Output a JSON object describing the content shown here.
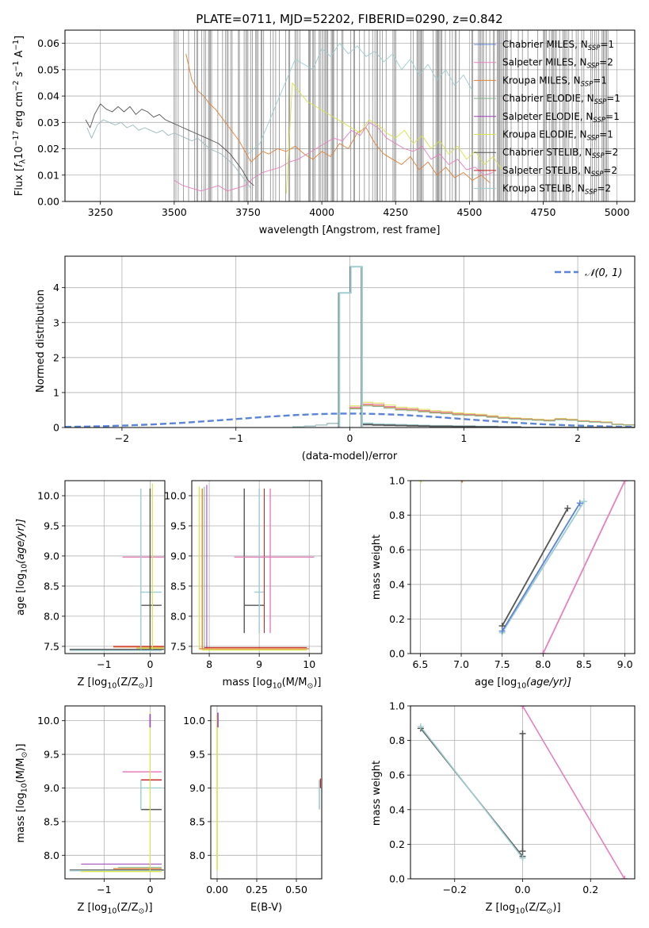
{
  "figure": {
    "title": "PLATE=0711, MJD=52202, FIBERID=0290, z=0.842"
  },
  "colors": {
    "chabrier_miles": "#5b84d6",
    "salpeter_miles": "#e77fbf",
    "kroupa_miles": "#e0803a",
    "chabrier_elodie": "#86b48b",
    "salpeter_elodie": "#9b3fb5",
    "kroupa_elodie": "#d9e24a",
    "chabrier_stelib": "#555555",
    "salpeter_stelib": "#c21b1b",
    "kroupa_stelib": "#9ecdd0",
    "data": "#9ab8bd",
    "mask": "#808080",
    "grid": "#b0b0b0",
    "normal": "#5b84d6"
  },
  "chart_data": [
    {
      "id": "spectrum",
      "type": "line",
      "xlabel": "wavelength [Angstrom, rest frame]",
      "ylabel": "Flux [f_λ 10^-17 erg cm^-2 s^-1 A^-1]",
      "ylabel_parts": {
        "a": "Flux [",
        "b": "f",
        "c": "λ",
        "d": "10",
        "e": "−17",
        "f": " erg cm",
        "g": "−2",
        "h": " s",
        "i": "−1",
        "j": " A",
        "k": "−1",
        "l": "]"
      },
      "xlim": [
        3130,
        5060
      ],
      "ylim": [
        0.0,
        0.065
      ],
      "xticks": [
        "3250",
        "3500",
        "3750",
        "4000",
        "4250",
        "4500",
        "4750",
        "5000"
      ],
      "xtick_values": [
        3250,
        3500,
        3750,
        4000,
        4250,
        4500,
        4750,
        5000
      ],
      "yticks": [
        "0.00",
        "0.01",
        "0.02",
        "0.03",
        "0.04",
        "0.05",
        "0.06"
      ],
      "ytick_values": [
        0,
        0.01,
        0.02,
        0.03,
        0.04,
        0.05,
        0.06
      ],
      "mask_range": [
        3500,
        4985
      ],
      "legend_position": "upper-right",
      "legend": [
        {
          "key": "chabrier_miles",
          "main": "Chabrier MILES, N",
          "sub": "SSP",
          "tail": "=1"
        },
        {
          "key": "salpeter_miles",
          "main": "Salpeter MILES, N",
          "sub": "SSP",
          "tail": "=2"
        },
        {
          "key": "kroupa_miles",
          "main": "Kroupa MILES, N",
          "sub": "SSP",
          "tail": "=1"
        },
        {
          "key": "chabrier_elodie",
          "main": "Chabrier ELODIE, N",
          "sub": "SSP",
          "tail": "=1"
        },
        {
          "key": "salpeter_elodie",
          "main": "Salpeter ELODIE, N",
          "sub": "SSP",
          "tail": "=1"
        },
        {
          "key": "kroupa_elodie",
          "main": "Kroupa ELODIE, N",
          "sub": "SSP",
          "tail": "=1"
        },
        {
          "key": "chabrier_stelib",
          "main": "Chabrier STELIB, N",
          "sub": "SSP",
          "tail": "=2"
        },
        {
          "key": "salpeter_stelib",
          "main": "Salpeter STELIB, N",
          "sub": "SSP",
          "tail": "=2"
        },
        {
          "key": "kroupa_stelib",
          "main": "Kroupa STELIB, N",
          "sub": "SSP",
          "tail": "=2"
        }
      ],
      "series": [
        {
          "key": "data",
          "x": [
            3205,
            3220,
            3240,
            3260,
            3280,
            3300,
            3320,
            3340,
            3360,
            3380,
            3400,
            3420,
            3440,
            3460,
            3480,
            3500,
            3520,
            3540,
            3560,
            3580,
            3600,
            3620,
            3640,
            3660,
            3680,
            3700,
            3720,
            3740,
            3760
          ],
          "y": [
            0.028,
            0.024,
            0.029,
            0.031,
            0.03,
            0.029,
            0.03,
            0.028,
            0.029,
            0.027,
            0.028,
            0.027,
            0.026,
            0.027,
            0.025,
            0.026,
            0.025,
            0.024,
            0.023,
            0.024,
            0.022,
            0.02,
            0.019,
            0.018,
            0.016,
            0.014,
            0.011,
            0.008,
            0.005
          ]
        },
        {
          "key": "chabrier_stelib",
          "x": [
            3200,
            3215,
            3230,
            3250,
            3270,
            3290,
            3310,
            3330,
            3350,
            3370,
            3390,
            3410,
            3430,
            3450,
            3470,
            3490,
            3510,
            3530,
            3550,
            3570,
            3590,
            3610,
            3630,
            3650,
            3670,
            3690,
            3710,
            3730,
            3750,
            3770
          ],
          "y": [
            0.031,
            0.028,
            0.033,
            0.037,
            0.035,
            0.034,
            0.036,
            0.034,
            0.036,
            0.033,
            0.035,
            0.034,
            0.032,
            0.033,
            0.031,
            0.03,
            0.029,
            0.028,
            0.027,
            0.026,
            0.025,
            0.024,
            0.023,
            0.022,
            0.02,
            0.018,
            0.015,
            0.012,
            0.008,
            0.006
          ]
        },
        {
          "key": "kroupa_miles",
          "x": [
            3540,
            3560,
            3580,
            3600,
            3620,
            3640,
            3660,
            3680,
            3700,
            3720,
            3740,
            3760,
            3780,
            3800,
            3820,
            3850,
            3880,
            3910,
            3940,
            3970,
            4000,
            4030,
            4060,
            4090,
            4120,
            4150,
            4180,
            4210,
            4240,
            4270,
            4300,
            4330,
            4360,
            4390,
            4420,
            4450,
            4480,
            4510,
            4540,
            4570
          ],
          "y": [
            0.056,
            0.046,
            0.042,
            0.04,
            0.037,
            0.035,
            0.032,
            0.029,
            0.026,
            0.023,
            0.019,
            0.015,
            0.017,
            0.019,
            0.018,
            0.02,
            0.019,
            0.021,
            0.018,
            0.016,
            0.019,
            0.017,
            0.022,
            0.02,
            0.026,
            0.028,
            0.022,
            0.018,
            0.016,
            0.014,
            0.017,
            0.012,
            0.015,
            0.01,
            0.013,
            0.009,
            0.011,
            0.008,
            0.01,
            0.007
          ]
        },
        {
          "key": "salpeter_miles",
          "x": [
            3500,
            3530,
            3560,
            3590,
            3620,
            3650,
            3680,
            3710,
            3740,
            3770,
            3800,
            3830,
            3860,
            3890,
            3920,
            3950,
            3980,
            4010,
            4040,
            4070,
            4100,
            4130,
            4160,
            4190,
            4220,
            4250,
            4280,
            4310,
            4340,
            4370,
            4400,
            4430,
            4460,
            4490,
            4520,
            4550,
            4580
          ],
          "y": [
            0.008,
            0.006,
            0.005,
            0.004,
            0.005,
            0.006,
            0.004,
            0.005,
            0.006,
            0.009,
            0.011,
            0.012,
            0.013,
            0.015,
            0.016,
            0.018,
            0.02,
            0.022,
            0.024,
            0.023,
            0.027,
            0.025,
            0.03,
            0.028,
            0.024,
            0.022,
            0.02,
            0.019,
            0.021,
            0.016,
            0.018,
            0.014,
            0.016,
            0.012,
            0.013,
            0.01,
            0.011
          ]
        },
        {
          "key": "kroupa_stelib",
          "x": [
            3750,
            3790,
            3820,
            3850,
            3880,
            3910,
            3940,
            3970,
            4000,
            4030,
            4060,
            4090,
            4120,
            4150,
            4180,
            4210,
            4240,
            4270,
            4300,
            4330,
            4360,
            4390,
            4420,
            4450,
            4480,
            4510
          ],
          "y": [
            0.018,
            0.022,
            0.03,
            0.038,
            0.046,
            0.054,
            0.052,
            0.05,
            0.058,
            0.055,
            0.06,
            0.056,
            0.059,
            0.055,
            0.057,
            0.053,
            0.056,
            0.05,
            0.054,
            0.048,
            0.052,
            0.046,
            0.05,
            0.044,
            0.048,
            0.042
          ]
        },
        {
          "key": "kroupa_elodie",
          "x": [
            3880,
            3900,
            3920,
            3950,
            3980,
            4010,
            4040,
            4070,
            4100,
            4130,
            4160,
            4190,
            4220,
            4250,
            4280,
            4310,
            4340,
            4370,
            4400,
            4430,
            4460,
            4490,
            4520,
            4550,
            4580,
            4610
          ],
          "y": [
            0.003,
            0.045,
            0.042,
            0.038,
            0.036,
            0.034,
            0.032,
            0.03,
            0.028,
            0.026,
            0.031,
            0.029,
            0.026,
            0.024,
            0.027,
            0.022,
            0.025,
            0.02,
            0.023,
            0.018,
            0.021,
            0.016,
            0.019,
            0.014,
            0.017,
            0.012
          ]
        }
      ]
    },
    {
      "id": "residuals",
      "type": "histogram",
      "xlabel": "(data-model)/error",
      "ylabel": "Normed distribution",
      "xlim": [
        -2.5,
        2.5
      ],
      "ylim": [
        0,
        4.9
      ],
      "xticks": [
        "−2",
        "−1",
        "0",
        "1",
        "2"
      ],
      "xtick_values": [
        -2,
        -1,
        0,
        1,
        2
      ],
      "yticks": [
        "0",
        "1",
        "2",
        "3",
        "4"
      ],
      "ytick_values": [
        0,
        1,
        2,
        3,
        4
      ],
      "legend_label": "𝒩(0, 1)",
      "legend_position": "upper-right",
      "peak_edges": [
        -0.1,
        0.0,
        0.1
      ],
      "peak_values": [
        3.85,
        4.6
      ],
      "tail_edges": [
        0.0,
        0.1,
        0.2,
        0.3,
        0.4,
        0.5,
        0.6,
        0.7,
        0.8,
        0.9,
        1.0,
        1.1,
        1.2,
        1.3,
        1.4,
        1.5,
        1.6,
        1.7,
        1.8,
        1.9,
        2.0,
        2.1,
        2.2,
        2.3,
        2.4,
        2.5
      ],
      "tail_values": [
        0.62,
        0.72,
        0.7,
        0.64,
        0.58,
        0.56,
        0.52,
        0.48,
        0.46,
        0.42,
        0.4,
        0.38,
        0.34,
        0.3,
        0.28,
        0.26,
        0.24,
        0.22,
        0.26,
        0.24,
        0.2,
        0.18,
        0.16,
        0.1,
        0.08
      ],
      "tail_series": [
        "kroupa_elodie",
        "salpeter_miles",
        "kroupa_miles",
        "chabrier_elodie"
      ],
      "tail_scales": [
        1.0,
        0.94,
        0.9,
        0.86
      ]
    },
    {
      "id": "age_vs_z",
      "type": "scatter",
      "xlabel_parts": {
        "a": "Z [log",
        "b": "10",
        "c": "(Z/Z",
        "d": "⊙",
        "e": ")]"
      },
      "ylabel_parts": {
        "a": "age  [log",
        "b": "10",
        "c": "(age/yr)]"
      },
      "xlim": [
        -1.85,
        0.32
      ],
      "ylim": [
        7.38,
        10.25
      ],
      "xticks": [
        "−1",
        "0"
      ],
      "xtick_values": [
        -1,
        0
      ],
      "yticks": [
        "7.5",
        "8.0",
        "8.5",
        "9.0",
        "9.5",
        "10.0"
      ],
      "ytick_values": [
        7.5,
        8.0,
        8.5,
        9.0,
        9.5,
        10.0
      ]
    },
    {
      "id": "age_vs_mass",
      "type": "scatter",
      "xlabel_parts": {
        "a": "mass [log",
        "b": "10",
        "c": "(M/M",
        "d": "⊙",
        "e": ")]"
      },
      "xlim": [
        7.65,
        10.25
      ],
      "ylim": [
        7.38,
        10.25
      ],
      "xticks": [
        "8",
        "9",
        "10"
      ],
      "xtick_values": [
        8,
        9,
        10
      ],
      "yticks": [
        "7.5",
        "8.0",
        "8.5",
        "9.0",
        "9.5",
        "10.0"
      ],
      "ytick_values": [
        7.5,
        8.0,
        8.5,
        9.0,
        9.5,
        10.0
      ]
    },
    {
      "id": "mass_weight_vs_age",
      "type": "line",
      "xlabel_parts": {
        "a": "age  [log",
        "b": "10",
        "c": "(age/yr)]"
      },
      "ylabel": "mass weight",
      "xlim": [
        6.38,
        9.12
      ],
      "ylim": [
        0,
        1.0
      ],
      "xticks": [
        "6.5",
        "7.0",
        "7.5",
        "8.0",
        "8.5",
        "9.0"
      ],
      "xtick_values": [
        6.5,
        7.0,
        7.5,
        8.0,
        8.5,
        9.0
      ],
      "yticks": [
        "0.0",
        "0.2",
        "0.4",
        "0.6",
        "0.8",
        "1.0"
      ],
      "ytick_values": [
        0,
        0.2,
        0.4,
        0.6,
        0.8,
        1.0
      ],
      "series": [
        {
          "key": "salpeter_miles",
          "x": [
            8.0,
            9.0
          ],
          "y": [
            0.0,
            1.0
          ]
        },
        {
          "key": "chabrier_stelib",
          "x": [
            7.5,
            8.3
          ],
          "y": [
            0.16,
            0.84
          ]
        },
        {
          "key": "kroupa_stelib",
          "x": [
            7.5,
            8.5
          ],
          "y": [
            0.12,
            0.88
          ]
        },
        {
          "key": "chabrier_miles",
          "x": [
            7.5,
            8.45
          ],
          "y": [
            0.13,
            0.87
          ]
        }
      ]
    },
    {
      "id": "mass_vs_z",
      "type": "scatter",
      "xlabel_parts": {
        "a": "Z [log",
        "b": "10",
        "c": "(Z/Z",
        "d": "⊙",
        "e": ")]"
      },
      "ylabel_parts": {
        "a": "mass [log",
        "b": "10",
        "c": "(M/M",
        "d": "⊙",
        "e": ")]"
      },
      "xlim": [
        -1.85,
        0.32
      ],
      "ylim": [
        7.65,
        10.22
      ],
      "xticks": [
        "−1",
        "0"
      ],
      "xtick_values": [
        -1,
        0
      ],
      "yticks": [
        "8.0",
        "8.5",
        "9.0",
        "9.5",
        "10.0"
      ],
      "ytick_values": [
        8.0,
        8.5,
        9.0,
        9.5,
        10.0
      ]
    },
    {
      "id": "mass_vs_ebv",
      "type": "scatter",
      "xlabel": "E(B-V)",
      "xlim": [
        -0.04,
        0.66
      ],
      "ylim": [
        7.65,
        10.22
      ],
      "xticks": [
        "0.00",
        "0.25",
        "0.50"
      ],
      "xtick_values": [
        0,
        0.25,
        0.5
      ],
      "yticks": [
        "8.0",
        "8.5",
        "9.0",
        "9.5",
        "10.0"
      ],
      "ytick_values": [
        8.0,
        8.5,
        9.0,
        9.5,
        10.0
      ]
    },
    {
      "id": "mass_weight_vs_z",
      "type": "line",
      "xlabel_parts": {
        "a": "Z [log",
        "b": "10",
        "c": "(Z/Z",
        "d": "⊙",
        "e": ")]"
      },
      "ylabel": "mass weight",
      "xlim": [
        -0.33,
        0.33
      ],
      "ylim": [
        0,
        1.0
      ],
      "xticks": [
        "−0.2",
        "0.0",
        "0.2"
      ],
      "xtick_values": [
        -0.2,
        0.0,
        0.2
      ],
      "yticks": [
        "0.0",
        "0.2",
        "0.4",
        "0.6",
        "0.8",
        "1.0"
      ],
      "ytick_values": [
        0,
        0.2,
        0.4,
        0.6,
        0.8,
        1.0
      ],
      "series": [
        {
          "key": "salpeter_miles",
          "x": [
            0.0,
            0.3
          ],
          "y": [
            1.0,
            0.0
          ]
        },
        {
          "key": "chabrier_stelib",
          "x": [
            0.0,
            0.0
          ],
          "y": [
            0.16,
            0.84
          ]
        },
        {
          "key": "chabrier_stelib",
          "x": [
            -0.3,
            0.0
          ],
          "y": [
            0.87,
            0.13
          ]
        },
        {
          "key": "kroupa_stelib",
          "x": [
            -0.3,
            0.0
          ],
          "y": [
            0.88,
            0.12
          ]
        }
      ]
    }
  ]
}
